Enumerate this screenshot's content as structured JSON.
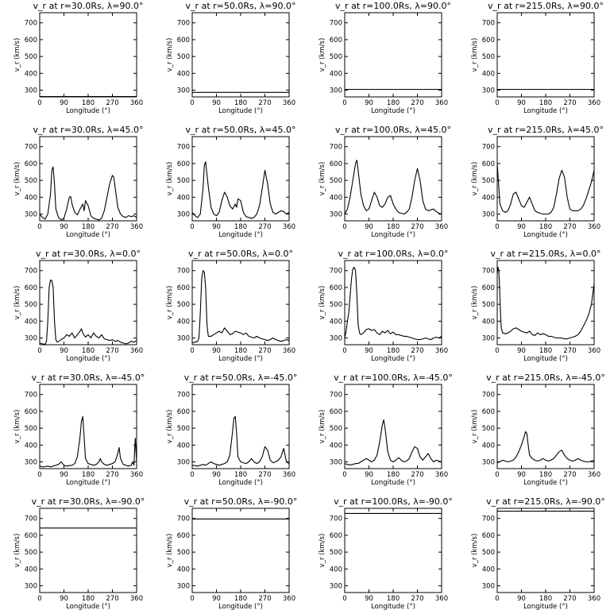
{
  "chart_data": [
    {
      "type": "line",
      "title": "v_r at r=30.0Rs, λ=90.0°",
      "xlabel": "Longitude (°)",
      "ylabel": "v_r (km/s)",
      "xlim": [
        0,
        360
      ],
      "ylim": [
        260,
        760
      ],
      "x": [
        0,
        360
      ],
      "y": [
        262,
        262
      ]
    },
    {
      "type": "line",
      "title": "v_r at r=50.0Rs, λ=90.0°",
      "xlabel": "Longitude (°)",
      "ylabel": "v_r (km/s)",
      "xlim": [
        0,
        360
      ],
      "ylim": [
        260,
        760
      ],
      "x": [
        0,
        360
      ],
      "y": [
        287,
        287
      ]
    },
    {
      "type": "line",
      "title": "v_r at r=100.0Rs, λ=90.0°",
      "xlabel": "Longitude (°)",
      "ylabel": "v_r (km/s)",
      "xlim": [
        0,
        360
      ],
      "ylim": [
        260,
        760
      ],
      "x": [
        0,
        360
      ],
      "y": [
        305,
        305
      ]
    },
    {
      "type": "line",
      "title": "v_r at r=215.0Rs, λ=90.0°",
      "xlabel": "Longitude (°)",
      "ylabel": "v_r (km/s)",
      "xlim": [
        0,
        360
      ],
      "ylim": [
        260,
        760
      ],
      "x": [
        0,
        360
      ],
      "y": [
        305,
        305
      ]
    },
    {
      "type": "line",
      "title": "v_r at r=30.0Rs, λ=45.0°",
      "xlabel": "Longitude (°)",
      "ylabel": "v_r (km/s)",
      "xlim": [
        0,
        360
      ],
      "ylim": [
        260,
        760
      ],
      "x": [
        0,
        10,
        20,
        30,
        40,
        45,
        50,
        55,
        60,
        70,
        80,
        90,
        100,
        110,
        115,
        120,
        130,
        140,
        150,
        160,
        165,
        170,
        180,
        190,
        200,
        210,
        220,
        230,
        240,
        250,
        260,
        270,
        275,
        280,
        290,
        300,
        310,
        320,
        330,
        340,
        350,
        360
      ],
      "y": [
        300,
        280,
        270,
        300,
        420,
        560,
        580,
        480,
        330,
        280,
        265,
        275,
        330,
        400,
        405,
        360,
        310,
        295,
        330,
        360,
        320,
        380,
        350,
        290,
        275,
        270,
        265,
        275,
        320,
        400,
        480,
        530,
        520,
        460,
        340,
        300,
        285,
        280,
        290,
        285,
        290,
        280
      ]
    },
    {
      "type": "line",
      "title": "v_r at r=50.0Rs, λ=45.0°",
      "xlabel": "Longitude (°)",
      "ylabel": "v_r (km/s)",
      "xlim": [
        0,
        360
      ],
      "ylim": [
        260,
        760
      ],
      "x": [
        0,
        10,
        20,
        30,
        40,
        45,
        50,
        60,
        70,
        80,
        90,
        100,
        110,
        120,
        130,
        140,
        150,
        160,
        165,
        170,
        180,
        190,
        200,
        210,
        220,
        230,
        240,
        250,
        260,
        270,
        280,
        290,
        300,
        310,
        320,
        330,
        340,
        350,
        360
      ],
      "y": [
        310,
        290,
        280,
        300,
        450,
        590,
        610,
        460,
        340,
        300,
        290,
        310,
        380,
        430,
        400,
        350,
        330,
        360,
        340,
        390,
        380,
        310,
        285,
        280,
        275,
        280,
        300,
        350,
        450,
        560,
        480,
        360,
        310,
        300,
        310,
        320,
        315,
        300,
        310
      ]
    },
    {
      "type": "line",
      "title": "v_r at r=100.0Rs, λ=45.0°",
      "xlabel": "Longitude (°)",
      "ylabel": "v_r (km/s)",
      "xlim": [
        0,
        360
      ],
      "ylim": [
        260,
        760
      ],
      "x": [
        0,
        10,
        20,
        30,
        40,
        45,
        50,
        60,
        70,
        80,
        90,
        100,
        110,
        120,
        130,
        140,
        150,
        160,
        170,
        180,
        190,
        200,
        210,
        220,
        230,
        240,
        250,
        260,
        270,
        280,
        290,
        300,
        310,
        320,
        330,
        340,
        350,
        360
      ],
      "y": [
        300,
        330,
        400,
        500,
        600,
        620,
        560,
        420,
        350,
        320,
        330,
        380,
        430,
        400,
        350,
        340,
        360,
        400,
        410,
        360,
        330,
        310,
        305,
        300,
        310,
        330,
        400,
        500,
        570,
        500,
        380,
        330,
        320,
        325,
        330,
        315,
        305,
        300
      ]
    },
    {
      "type": "line",
      "title": "v_r at r=215.0Rs, λ=45.0°",
      "xlabel": "Longitude (°)",
      "ylabel": "v_r (km/s)",
      "xlim": [
        0,
        360
      ],
      "ylim": [
        260,
        760
      ],
      "x": [
        0,
        10,
        20,
        30,
        40,
        50,
        60,
        70,
        80,
        90,
        100,
        110,
        120,
        130,
        140,
        150,
        160,
        170,
        180,
        190,
        200,
        210,
        220,
        230,
        240,
        250,
        260,
        270,
        280,
        290,
        300,
        310,
        320,
        330,
        340,
        350,
        360
      ],
      "y": [
        600,
        360,
        320,
        310,
        320,
        360,
        420,
        430,
        390,
        350,
        340,
        370,
        400,
        360,
        320,
        310,
        305,
        300,
        300,
        300,
        310,
        340,
        420,
        510,
        560,
        520,
        400,
        330,
        320,
        320,
        320,
        330,
        350,
        390,
        440,
        490,
        560
      ]
    },
    {
      "type": "line",
      "title": "v_r at r=30.0Rs, λ=0.0°",
      "xlabel": "Longitude (°)",
      "ylabel": "v_r (km/s)",
      "xlim": [
        0,
        360
      ],
      "ylim": [
        260,
        760
      ],
      "x": [
        0,
        10,
        20,
        25,
        30,
        35,
        40,
        45,
        50,
        55,
        60,
        65,
        70,
        80,
        90,
        100,
        110,
        120,
        130,
        140,
        150,
        155,
        160,
        170,
        180,
        190,
        200,
        210,
        220,
        230,
        240,
        250,
        260,
        270,
        280,
        290,
        300,
        310,
        320,
        330,
        340,
        350,
        360
      ],
      "y": [
        270,
        265,
        262,
        280,
        400,
        600,
        645,
        640,
        600,
        400,
        290,
        275,
        280,
        290,
        300,
        320,
        310,
        330,
        300,
        320,
        340,
        355,
        330,
        305,
        320,
        300,
        330,
        310,
        300,
        320,
        295,
        290,
        285,
        290,
        280,
        285,
        275,
        270,
        265,
        270,
        280,
        275,
        285
      ]
    },
    {
      "type": "line",
      "title": "v_r at r=50.0Rs, λ=0.0°",
      "xlabel": "Longitude (°)",
      "ylabel": "v_r (km/s)",
      "xlim": [
        0,
        360
      ],
      "ylim": [
        260,
        760
      ],
      "x": [
        0,
        10,
        20,
        25,
        30,
        35,
        40,
        45,
        50,
        55,
        60,
        70,
        80,
        90,
        100,
        110,
        120,
        130,
        140,
        150,
        160,
        170,
        180,
        190,
        200,
        210,
        220,
        230,
        240,
        250,
        260,
        270,
        280,
        290,
        300,
        310,
        320,
        330,
        340,
        350,
        360
      ],
      "y": [
        270,
        275,
        280,
        300,
        450,
        650,
        700,
        690,
        600,
        380,
        310,
        310,
        320,
        330,
        340,
        330,
        360,
        340,
        320,
        325,
        340,
        335,
        330,
        320,
        330,
        310,
        305,
        300,
        310,
        300,
        295,
        290,
        285,
        290,
        300,
        290,
        285,
        280,
        285,
        290,
        285
      ]
    },
    {
      "type": "line",
      "title": "v_r at r=100.0Rs, λ=0.0°",
      "xlabel": "Longitude (°)",
      "ylabel": "v_r (km/s)",
      "xlim": [
        0,
        360
      ],
      "ylim": [
        260,
        760
      ],
      "x": [
        0,
        5,
        10,
        15,
        20,
        25,
        30,
        35,
        40,
        45,
        50,
        55,
        60,
        70,
        80,
        90,
        100,
        110,
        120,
        130,
        140,
        150,
        160,
        170,
        180,
        190,
        200,
        210,
        220,
        230,
        240,
        250,
        260,
        270,
        280,
        290,
        300,
        310,
        320,
        330,
        340,
        350,
        360
      ],
      "y": [
        300,
        340,
        400,
        450,
        550,
        650,
        710,
        720,
        700,
        560,
        380,
        330,
        320,
        330,
        350,
        355,
        345,
        350,
        330,
        320,
        340,
        330,
        345,
        325,
        335,
        320,
        320,
        315,
        310,
        310,
        305,
        300,
        295,
        290,
        290,
        295,
        300,
        295,
        290,
        300,
        305,
        300,
        310
      ]
    },
    {
      "type": "line",
      "title": "v_r at r=215.0Rs, λ=0.0°",
      "xlabel": "Longitude (°)",
      "ylabel": "v_r (km/s)",
      "xlim": [
        0,
        360
      ],
      "ylim": [
        260,
        760
      ],
      "x": [
        0,
        3,
        6,
        9,
        12,
        15,
        20,
        30,
        40,
        50,
        60,
        70,
        80,
        90,
        100,
        110,
        120,
        130,
        140,
        150,
        160,
        170,
        180,
        190,
        200,
        210,
        220,
        230,
        240,
        250,
        260,
        270,
        280,
        290,
        300,
        310,
        320,
        330,
        340,
        350,
        355,
        360
      ],
      "y": [
        680,
        720,
        700,
        600,
        450,
        360,
        330,
        325,
        330,
        340,
        355,
        360,
        350,
        340,
        335,
        330,
        340,
        320,
        315,
        330,
        320,
        325,
        320,
        310,
        310,
        305,
        300,
        300,
        300,
        295,
        295,
        300,
        305,
        310,
        320,
        340,
        370,
        400,
        440,
        500,
        560,
        620
      ]
    },
    {
      "type": "line",
      "title": "v_r at r=30.0Rs, λ=-45.0°",
      "xlabel": "Longitude (°)",
      "ylabel": "v_r (km/s)",
      "xlim": [
        0,
        360
      ],
      "ylim": [
        260,
        760
      ],
      "x": [
        0,
        10,
        20,
        30,
        40,
        50,
        60,
        70,
        80,
        90,
        100,
        110,
        120,
        130,
        140,
        150,
        155,
        160,
        165,
        170,
        180,
        190,
        200,
        210,
        220,
        225,
        230,
        240,
        250,
        260,
        270,
        280,
        290,
        295,
        300,
        310,
        320,
        330,
        340,
        345,
        350,
        355,
        360
      ],
      "y": [
        275,
        270,
        272,
        275,
        270,
        275,
        280,
        285,
        300,
        280,
        275,
        278,
        280,
        290,
        330,
        450,
        540,
        570,
        450,
        320,
        290,
        285,
        280,
        285,
        300,
        320,
        300,
        285,
        280,
        285,
        290,
        300,
        350,
        385,
        320,
        285,
        280,
        275,
        280,
        300,
        280,
        440,
        300
      ]
    },
    {
      "type": "line",
      "title": "v_r at r=50.0Rs, λ=-45.0°",
      "xlabel": "Longitude (°)",
      "ylabel": "v_r (km/s)",
      "xlim": [
        0,
        360
      ],
      "ylim": [
        260,
        760
      ],
      "x": [
        0,
        10,
        20,
        30,
        40,
        50,
        60,
        70,
        80,
        90,
        100,
        110,
        120,
        130,
        140,
        150,
        155,
        160,
        165,
        170,
        180,
        190,
        200,
        210,
        220,
        230,
        240,
        250,
        260,
        270,
        280,
        290,
        300,
        310,
        320,
        330,
        340,
        350,
        360
      ],
      "y": [
        280,
        278,
        275,
        280,
        285,
        280,
        290,
        300,
        290,
        285,
        280,
        285,
        290,
        300,
        340,
        480,
        560,
        570,
        470,
        330,
        300,
        295,
        290,
        300,
        320,
        300,
        290,
        300,
        330,
        390,
        370,
        310,
        295,
        300,
        310,
        330,
        380,
        300,
        290
      ]
    },
    {
      "type": "line",
      "title": "v_r at r=100.0Rs, λ=-45.0°",
      "xlabel": "Longitude (°)",
      "ylabel": "v_r (km/s)",
      "xlim": [
        0,
        360
      ],
      "ylim": [
        260,
        760
      ],
      "x": [
        0,
        10,
        20,
        30,
        40,
        50,
        60,
        70,
        80,
        90,
        100,
        110,
        120,
        130,
        140,
        145,
        150,
        160,
        170,
        180,
        190,
        200,
        210,
        220,
        230,
        240,
        250,
        260,
        270,
        280,
        290,
        300,
        310,
        320,
        330,
        340,
        350,
        360
      ],
      "y": [
        290,
        285,
        282,
        285,
        290,
        290,
        300,
        310,
        320,
        310,
        300,
        310,
        340,
        420,
        520,
        550,
        500,
        360,
        310,
        300,
        310,
        325,
        310,
        300,
        305,
        320,
        360,
        390,
        380,
        330,
        310,
        330,
        350,
        320,
        300,
        310,
        305,
        300
      ]
    },
    {
      "type": "line",
      "title": "v_r at r=215.0Rs, λ=-45.0°",
      "xlabel": "Longitude (°)",
      "ylabel": "v_r (km/s)",
      "xlim": [
        0,
        360
      ],
      "ylim": [
        260,
        760
      ],
      "x": [
        0,
        10,
        20,
        30,
        40,
        50,
        60,
        70,
        80,
        90,
        100,
        105,
        110,
        115,
        120,
        130,
        140,
        150,
        160,
        170,
        180,
        190,
        200,
        210,
        220,
        230,
        240,
        250,
        260,
        270,
        280,
        290,
        300,
        310,
        320,
        330,
        340,
        350,
        360
      ],
      "y": [
        295,
        300,
        310,
        305,
        300,
        305,
        310,
        330,
        360,
        400,
        450,
        480,
        470,
        400,
        340,
        320,
        310,
        305,
        310,
        320,
        310,
        305,
        310,
        320,
        340,
        360,
        370,
        340,
        320,
        310,
        305,
        310,
        320,
        310,
        305,
        300,
        300,
        305,
        310
      ]
    },
    {
      "type": "line",
      "title": "v_r at r=30.0Rs, λ=-90.0°",
      "xlabel": "Longitude (°)",
      "ylabel": "v_r (km/s)",
      "xlim": [
        0,
        360
      ],
      "ylim": [
        260,
        760
      ],
      "x": [
        0,
        360
      ],
      "y": [
        643,
        643
      ]
    },
    {
      "type": "line",
      "title": "v_r at r=50.0Rs, λ=-90.0°",
      "xlabel": "Longitude (°)",
      "ylabel": "v_r (km/s)",
      "xlim": [
        0,
        360
      ],
      "ylim": [
        260,
        760
      ],
      "x": [
        0,
        360
      ],
      "y": [
        697,
        697
      ]
    },
    {
      "type": "line",
      "title": "v_r at r=100.0Rs, λ=-90.0°",
      "xlabel": "Longitude (°)",
      "ylabel": "v_r (km/s)",
      "xlim": [
        0,
        360
      ],
      "ylim": [
        260,
        760
      ],
      "x": [
        0,
        360
      ],
      "y": [
        730,
        730
      ]
    },
    {
      "type": "line",
      "title": "v_r at r=215.0Rs, λ=-90.0°",
      "xlabel": "Longitude (°)",
      "ylabel": "v_r (km/s)",
      "xlim": [
        0,
        360
      ],
      "ylim": [
        260,
        760
      ],
      "x": [
        0,
        360
      ],
      "y": [
        743,
        743
      ]
    }
  ],
  "axis": {
    "xticks": [
      0,
      90,
      180,
      270,
      360
    ],
    "yticks": [
      300,
      400,
      500,
      600,
      700
    ],
    "xlabel_text": "Longitude (°)",
    "ylabel_text": "v_r (km/s)"
  }
}
